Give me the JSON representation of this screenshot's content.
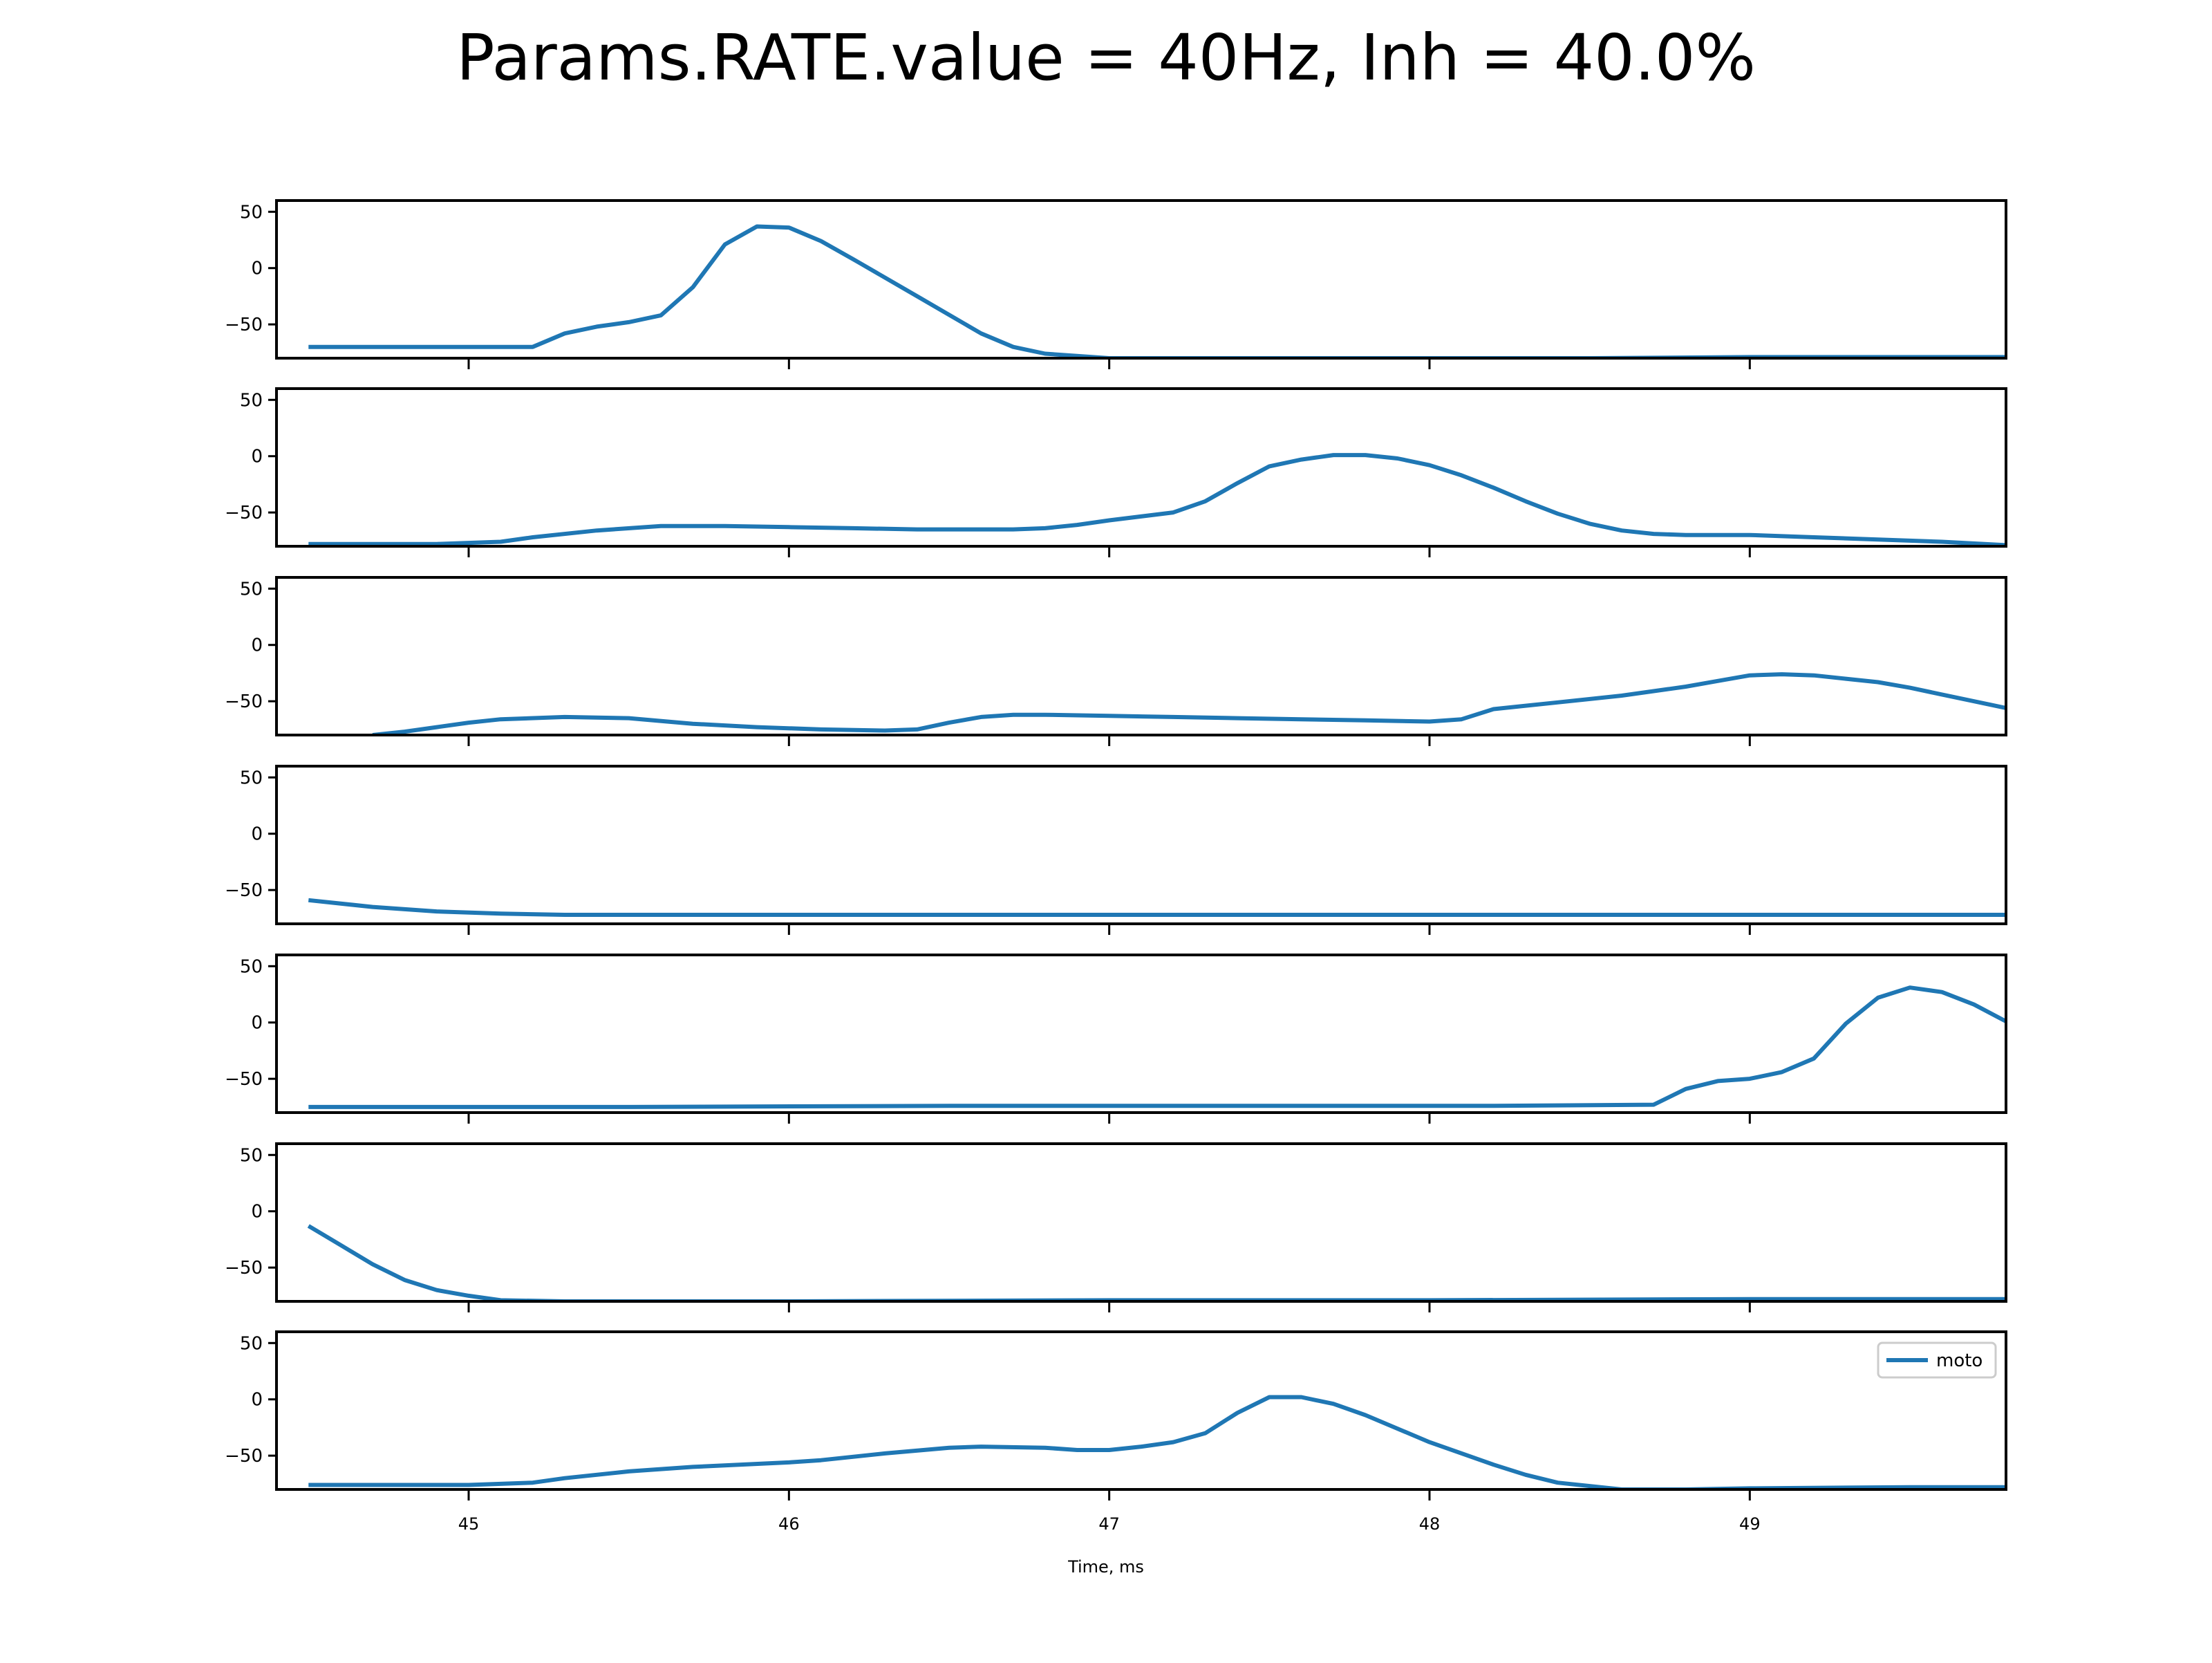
{
  "title": "Params.RATE.value = 40Hz, Inh = 40.0%",
  "chart_data": {
    "type": "line",
    "title": "Params.RATE.value = 40Hz, Inh = 40.0%",
    "xlabel": "Time, ms",
    "ylabel": "",
    "xlim": [
      44.4,
      49.8
    ],
    "ylim": [
      -80,
      60
    ],
    "yticks": [
      50,
      0,
      -50
    ],
    "xticks": [
      45,
      46,
      47,
      48,
      49
    ],
    "xtick_labels": [
      "45",
      "46",
      "47",
      "48",
      "49"
    ],
    "legend": {
      "label": "moto",
      "placement": "upper right",
      "panel": 7
    },
    "line_color": "#1f77b4",
    "grid": false,
    "panels": [
      {
        "x": [
          44.5,
          44.7,
          44.9,
          45.1,
          45.2,
          45.3,
          45.4,
          45.5,
          45.6,
          45.7,
          45.8,
          45.9,
          46.0,
          46.1,
          46.2,
          46.4,
          46.6,
          46.7,
          46.8,
          47.0,
          48.5,
          49.0,
          49.8
        ],
        "y": [
          -70,
          -70,
          -70,
          -70,
          -70,
          -58,
          -52,
          -48,
          -42,
          -17,
          21,
          37,
          36,
          24,
          8,
          -25,
          -58,
          -70,
          -76,
          -80,
          -80,
          -79,
          -79
        ]
      },
      {
        "x": [
          44.5,
          44.9,
          45.1,
          45.2,
          45.4,
          45.6,
          45.8,
          46.0,
          46.2,
          46.4,
          46.6,
          46.7,
          46.8,
          46.9,
          47.0,
          47.2,
          47.3,
          47.4,
          47.5,
          47.6,
          47.7,
          47.8,
          47.9,
          48.0,
          48.1,
          48.2,
          48.3,
          48.4,
          48.5,
          48.6,
          48.7,
          48.8,
          49.0,
          49.2,
          49.4,
          49.6,
          49.8
        ],
        "y": [
          -78,
          -78,
          -76,
          -72,
          -66,
          -62,
          -62,
          -63,
          -64,
          -65,
          -65,
          -65,
          -64,
          -61,
          -57,
          -50,
          -40,
          -24,
          -9,
          -3,
          1,
          1,
          -2,
          -8,
          -17,
          -28,
          -40,
          -51,
          -60,
          -66,
          -69,
          -70,
          -70,
          -72,
          -74,
          -76,
          -79
        ]
      },
      {
        "x": [
          44.7,
          44.8,
          44.9,
          45.0,
          45.1,
          45.3,
          45.5,
          45.7,
          45.9,
          46.1,
          46.3,
          46.4,
          46.5,
          46.6,
          46.7,
          46.8,
          47.0,
          47.2,
          47.4,
          47.6,
          47.8,
          48.0,
          48.1,
          48.2,
          48.4,
          48.6,
          48.8,
          48.9,
          49.0,
          49.1,
          49.2,
          49.3,
          49.4,
          49.5,
          49.6,
          49.8
        ],
        "y": [
          -80,
          -77,
          -73,
          -69,
          -66,
          -64,
          -65,
          -70,
          -73,
          -75,
          -76,
          -75,
          -69,
          -64,
          -62,
          -62,
          -63,
          -64,
          -65,
          -66,
          -67,
          -68,
          -66,
          -57,
          -51,
          -45,
          -37,
          -32,
          -27,
          -26,
          -27,
          -30,
          -33,
          -38,
          -44,
          -56
        ]
      },
      {
        "x": [
          44.5,
          44.7,
          44.9,
          45.1,
          45.3,
          45.5,
          46.0,
          46.5,
          47.0,
          47.5,
          48.0,
          48.5,
          49.0,
          49.5,
          49.8
        ],
        "y": [
          -59,
          -65,
          -69,
          -71,
          -72,
          -72,
          -72,
          -72,
          -72,
          -72,
          -72,
          -72,
          -72,
          -72,
          -72
        ]
      },
      {
        "x": [
          44.5,
          45.5,
          46.5,
          47.5,
          48.2,
          48.7,
          48.8,
          48.9,
          49.0,
          49.1,
          49.2,
          49.3,
          49.4,
          49.5,
          49.6,
          49.7,
          49.8
        ],
        "y": [
          -75,
          -75,
          -74,
          -74,
          -74,
          -73,
          -59,
          -52,
          -50,
          -44,
          -32,
          -1,
          22,
          31,
          27,
          16,
          1
        ]
      },
      {
        "x": [
          44.5,
          44.6,
          44.7,
          44.8,
          44.9,
          45.0,
          45.1,
          45.3,
          46.0,
          47.0,
          48.0,
          49.0,
          49.8
        ],
        "y": [
          -13,
          -30,
          -47,
          -61,
          -70,
          -75,
          -79,
          -80,
          -80,
          -79,
          -79,
          -78,
          -78
        ]
      },
      {
        "x": [
          44.5,
          44.8,
          45.0,
          45.1,
          45.2,
          45.3,
          45.5,
          45.7,
          46.0,
          46.1,
          46.3,
          46.5,
          46.6,
          46.8,
          46.9,
          47.0,
          47.1,
          47.2,
          47.3,
          47.4,
          47.5,
          47.6,
          47.7,
          47.8,
          48.0,
          48.2,
          48.3,
          48.4,
          48.6,
          48.8,
          49.0,
          49.5,
          49.8
        ],
        "y": [
          -76,
          -76,
          -76,
          -75,
          -74,
          -70,
          -64,
          -60,
          -56,
          -54,
          -48,
          -43,
          -42,
          -43,
          -45,
          -45,
          -42,
          -38,
          -30,
          -12,
          2,
          2,
          -4,
          -14,
          -38,
          -58,
          -67,
          -74,
          -80,
          -80,
          -79,
          -78,
          -78
        ]
      }
    ]
  }
}
